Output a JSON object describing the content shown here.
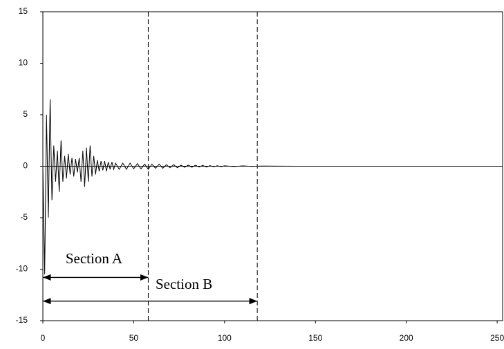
{
  "chart_data": {
    "type": "line",
    "x": [
      0,
      1,
      2,
      3,
      4,
      5,
      6,
      7,
      8,
      9,
      10,
      11,
      12,
      13,
      14,
      15,
      16,
      17,
      18,
      19,
      20,
      21,
      22,
      23,
      24,
      25,
      26,
      27,
      28,
      29,
      30,
      31,
      32,
      33,
      34,
      35,
      36,
      37,
      38,
      39,
      40,
      42,
      44,
      46,
      48,
      50,
      52,
      54,
      56,
      58,
      60,
      62,
      64,
      66,
      68,
      70,
      72,
      74,
      76,
      78,
      80,
      82,
      84,
      86,
      88,
      90,
      92,
      94,
      96,
      98,
      100,
      105,
      110,
      115,
      120,
      130,
      140,
      150,
      200,
      253
    ],
    "series": [
      {
        "color": "#000000",
        "values": [
          0,
          -10.5,
          5,
          -5,
          6.5,
          -3.3,
          2,
          -1.5,
          1.5,
          -2.5,
          2.5,
          -1.5,
          1,
          -1.2,
          1.2,
          -0.8,
          0.8,
          -1,
          0.7,
          -0.6,
          0.8,
          -1.5,
          1.5,
          -2,
          1.8,
          -1.5,
          2,
          -1,
          1,
          -0.8,
          0.6,
          -0.5,
          0.5,
          -0.4,
          0.5,
          -0.5,
          0.4,
          -0.3,
          0.4,
          -0.3,
          0.3,
          -0.3,
          0.3,
          -0.3,
          0.3,
          -0.25,
          0.25,
          -0.25,
          0.2,
          -0.3,
          0.2,
          -0.2,
          0.2,
          -0.2,
          0.15,
          -0.15,
          0.15,
          -0.15,
          0.1,
          -0.1,
          0.1,
          -0.1,
          0.1,
          -0.08,
          0.08,
          -0.08,
          0.06,
          -0.06,
          0.05,
          -0.05,
          0.04,
          -0.03,
          0.03,
          -0.02,
          0.02,
          0.01,
          0,
          0,
          0,
          0
        ]
      }
    ],
    "xlim": [
      0,
      253
    ],
    "ylim": [
      -15,
      15
    ],
    "xticks": [
      0,
      50,
      100,
      150,
      200,
      250
    ],
    "yticks": [
      -15,
      -10,
      -5,
      0,
      5,
      10,
      15
    ],
    "vlines": [
      58,
      118
    ],
    "spans": [
      {
        "x0": 0,
        "x1": 58,
        "y": -10.8
      },
      {
        "x0": 0,
        "x1": 118,
        "y": -13.1
      }
    ],
    "annotations": [
      {
        "text": "Section A",
        "x": 12.5,
        "y": -9.1
      },
      {
        "text": "Section B",
        "x": 62,
        "y": -11.6
      }
    ]
  }
}
